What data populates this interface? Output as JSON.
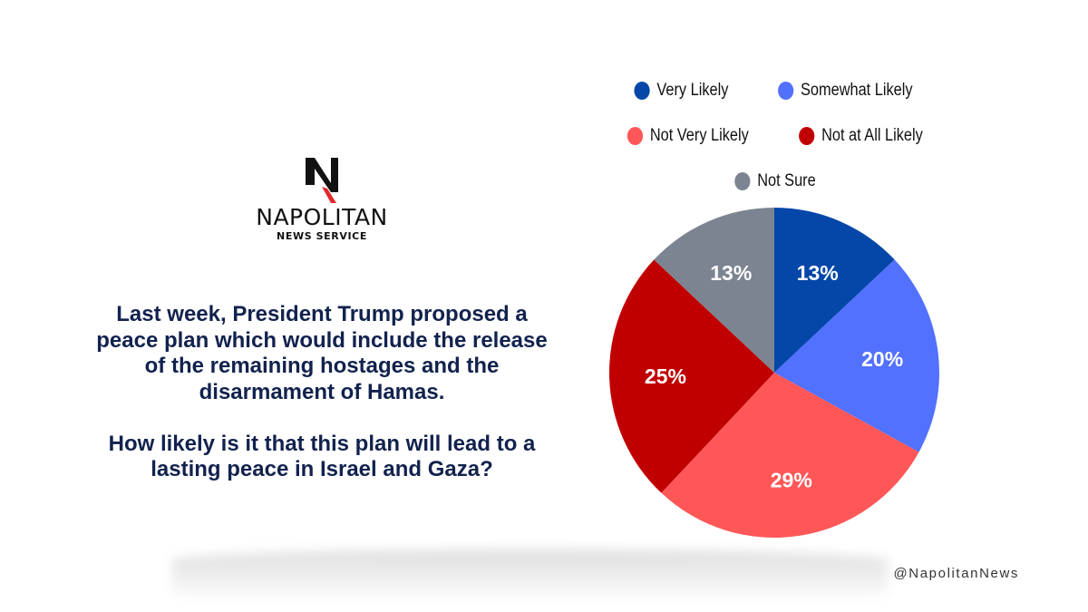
{
  "brand": {
    "name": "NAPOLITAN",
    "subtitle": "NEWS SERVICE",
    "handle": "@NapolitanNews",
    "logo_icon": "napolitan-n-logo"
  },
  "question": {
    "intro": "Last week, President Trump proposed a peace plan which would include the release of the remaining hostages and the disarmament of Hamas.",
    "ask": "How likely is it that this plan will lead to a lasting peace in Israel and Gaza?"
  },
  "chart_data": {
    "type": "pie",
    "title": "How likely is it that this plan will lead to a lasting peace in Israel and Gaza?",
    "unit": "%",
    "start": "top",
    "direction": "clockwise",
    "legend_position": "top",
    "slices": [
      {
        "label": "Very Likely",
        "value": 13,
        "display": "13%",
        "color": "#0447a8"
      },
      {
        "label": "Somewhat Likely",
        "value": 20,
        "display": "20%",
        "color": "#5271ff"
      },
      {
        "label": "Not Very Likely",
        "value": 29,
        "display": "29%",
        "color": "#ff5757"
      },
      {
        "label": "Not at All Likely",
        "value": 25,
        "display": "25%",
        "color": "#c00000"
      },
      {
        "label": "Not Sure",
        "value": 13,
        "display": "13%",
        "color": "#7d8491"
      }
    ],
    "legend_rows": [
      [
        0,
        1
      ],
      [
        2,
        3
      ],
      [
        4
      ]
    ]
  },
  "colors": {
    "question_text": "#12224e",
    "label_text": "#ffffff",
    "logo_red": "#e0282e"
  }
}
